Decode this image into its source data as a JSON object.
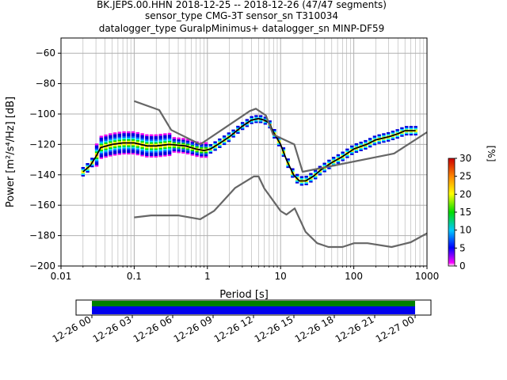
{
  "header": {
    "line1": "BK.JEPS.00.HHN   2018-12-25 -- 2018-12-26  (47/47 segments)",
    "line2": "sensor_type CMG-3T sensor_sn T310034",
    "line3": "datalogger_type GuralpMinimus+ datalogger_sn MINP-DF59"
  },
  "chart_data": [
    {
      "type": "heatmap",
      "subtype": "probabilistic power spectral density",
      "title": "BK.JEPS.00.HHN   2018-12-25 -- 2018-12-26  (47/47 segments)",
      "xlabel": "Period [s]",
      "ylabel": "Power [m²/s⁴/Hz] [dB]",
      "xscale": "log",
      "xlim": [
        0.01,
        1000
      ],
      "ylim": [
        -200,
        -50
      ],
      "x_ticks": [
        0.01,
        0.1,
        1,
        10,
        100,
        1000
      ],
      "x_tick_labels": [
        "0.01",
        "0.1",
        "1",
        "10",
        "100",
        "1000"
      ],
      "y_ticks": [
        -200,
        -180,
        -160,
        -140,
        -120,
        -100,
        -80,
        -60
      ],
      "y_tick_labels": [
        "−200",
        "−180",
        "−160",
        "−140",
        "−120",
        "−100",
        "−80",
        "−60"
      ],
      "grid": true,
      "colorbar": {
        "label": "[%]",
        "range": [
          0,
          30
        ],
        "ticks": [
          0,
          5,
          10,
          15,
          20,
          25,
          30
        ],
        "colormap": "pqlx"
      },
      "series": [
        {
          "role": "mean-psd",
          "color": "#000000",
          "x": [
            0.02,
            0.025,
            0.03,
            0.035,
            0.05,
            0.07,
            0.1,
            0.15,
            0.2,
            0.3,
            0.5,
            0.7,
            0.9,
            1.1,
            1.5,
            2,
            3,
            4,
            5,
            6,
            7,
            8,
            10,
            12,
            15,
            18,
            22,
            28,
            35,
            50,
            70,
            100,
            150,
            200,
            300,
            400,
            500,
            700
          ],
          "y": [
            -138,
            -134,
            -128,
            -122,
            -120,
            -119,
            -119,
            -121,
            -121,
            -120,
            -121,
            -123,
            -124,
            -123,
            -119,
            -115,
            -108,
            -104,
            -103,
            -104,
            -106,
            -112,
            -120,
            -130,
            -140,
            -144,
            -144,
            -141,
            -137,
            -132,
            -128,
            -123,
            -120,
            -117,
            -115,
            -113,
            -111,
            -111
          ]
        },
        {
          "role": "NHNM",
          "color": "#666666",
          "x": [
            0.1,
            0.22,
            0.32,
            0.8,
            3.8,
            4.6,
            6.3,
            7.9,
            15.4,
            20,
            354.8,
            1000
          ],
          "y": [
            -91.5,
            -97.4,
            -110.5,
            -120,
            -98,
            -96.5,
            -101,
            -113.5,
            -120,
            -138,
            -126,
            -112
          ]
        },
        {
          "role": "NLNM",
          "color": "#666666",
          "x": [
            0.1,
            0.17,
            0.4,
            0.8,
            1.24,
            2.4,
            4.3,
            5,
            6,
            10,
            12,
            15.6,
            21.9,
            31.6,
            45,
            70,
            101,
            154,
            328,
            600,
            1000
          ],
          "y": [
            -168,
            -166.7,
            -166.7,
            -169.2,
            -163.7,
            -148.6,
            -141.1,
            -141.1,
            -149,
            -163.8,
            -166.2,
            -162.1,
            -177.5,
            -185,
            -187.5,
            -187.5,
            -185,
            -185,
            -187.5,
            -184.4,
            -178.5
          ]
        }
      ]
    },
    {
      "type": "timeline",
      "x_tick_labels": [
        "12-26 00",
        "12-26 03",
        "12-26 06",
        "12-26 09",
        "12-26 12",
        "12-26 15",
        "12-26 18",
        "12-26 21",
        "12-27 00"
      ],
      "bands": [
        {
          "role": "data-coverage",
          "color": "#008000",
          "start": "12-26 00",
          "end": "12-27 00"
        },
        {
          "role": "psd-segments",
          "color": "#0000ee",
          "start": "12-26 00",
          "end": "12-27 00"
        }
      ]
    }
  ]
}
